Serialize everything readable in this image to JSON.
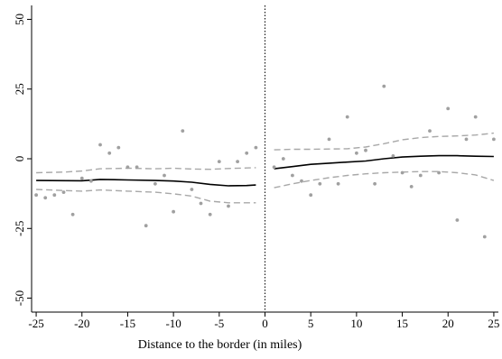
{
  "chart_data": {
    "type": "scatter",
    "title": "",
    "xlabel": "Distance to the border (in miles)",
    "ylabel": "",
    "xlim": [
      -25.5,
      25.5
    ],
    "ylim": [
      -55,
      55
    ],
    "xticks": [
      -25,
      -20,
      -15,
      -10,
      -5,
      0,
      5,
      10,
      15,
      20,
      25
    ],
    "yticks": [
      -50,
      -25,
      0,
      25,
      50
    ],
    "xtick_labels": [
      "-25",
      "-20",
      "-15",
      "-10",
      "-5",
      "0",
      "5",
      "10",
      "15",
      "20",
      "25"
    ],
    "ytick_labels": [
      "-50",
      "-25",
      "0",
      "25",
      "50"
    ],
    "cutoff": 0,
    "grid": false,
    "legend": "none",
    "colors": {
      "points": "#a0a0a0",
      "fit": "#000000",
      "ci": "#a8a8a8"
    },
    "points": {
      "x": [
        -25,
        -24,
        -23,
        -22,
        -21,
        -20,
        -19,
        -18,
        -17,
        -16,
        -15,
        -14,
        -13,
        -12,
        -11,
        -10,
        -9,
        -8,
        -7,
        -6,
        -5,
        -4,
        -3,
        -2,
        -1,
        1,
        2,
        3,
        4,
        5,
        6,
        7,
        8,
        9,
        10,
        11,
        12,
        13,
        14,
        15,
        16,
        17,
        18,
        19,
        20,
        21,
        22,
        23,
        24,
        25
      ],
      "y": [
        -13,
        -14,
        -13,
        -12,
        -20,
        -7,
        -8,
        5,
        2,
        4,
        -3,
        -3,
        -24,
        -9,
        -6,
        -19,
        10,
        -11,
        -16,
        -20,
        -1,
        -17,
        -1,
        2,
        4,
        -3,
        0,
        -6,
        -8,
        -13,
        -9,
        7,
        -9,
        15,
        2,
        3,
        -9,
        26,
        1,
        -5,
        -10,
        -6,
        10,
        -5,
        18,
        -22,
        7,
        15,
        -28,
        7
      ]
    },
    "series": [
      {
        "role": "fit-left",
        "x": [
          -25,
          -20,
          -18,
          -15,
          -12,
          -10,
          -8,
          -6,
          -4,
          -2,
          -1
        ],
        "y": [
          -7.8,
          -7.9,
          -7.4,
          -7.6,
          -7.8,
          -8.0,
          -8.4,
          -9.2,
          -9.7,
          -9.6,
          -9.4
        ]
      },
      {
        "role": "ci-upper-left",
        "x": [
          -25,
          -22,
          -20,
          -18,
          -15,
          -12,
          -10,
          -8,
          -6,
          -4,
          -2,
          -1
        ],
        "y": [
          -5.0,
          -4.8,
          -4.4,
          -3.6,
          -3.4,
          -3.6,
          -3.4,
          -3.7,
          -3.8,
          -3.5,
          -3.3,
          -3.2
        ]
      },
      {
        "role": "ci-lower-left",
        "x": [
          -25,
          -22,
          -20,
          -18,
          -15,
          -12,
          -10,
          -8,
          -6,
          -4,
          -2,
          -1
        ],
        "y": [
          -11.0,
          -11.4,
          -11.6,
          -11.2,
          -11.6,
          -12.0,
          -12.6,
          -13.4,
          -15.2,
          -15.8,
          -15.8,
          -15.8
        ]
      },
      {
        "role": "fit-right",
        "x": [
          1,
          3,
          5,
          7,
          9,
          11,
          13,
          15,
          17,
          19,
          21,
          23,
          25
        ],
        "y": [
          -3.6,
          -2.8,
          -2.0,
          -1.6,
          -1.2,
          -0.8,
          0.0,
          0.6,
          0.9,
          1.1,
          1.1,
          0.9,
          0.8
        ]
      },
      {
        "role": "ci-upper-right",
        "x": [
          1,
          3,
          5,
          7,
          9,
          11,
          13,
          15,
          17,
          19,
          21,
          23,
          25
        ],
        "y": [
          3.2,
          3.4,
          3.4,
          3.5,
          3.6,
          4.2,
          5.4,
          6.8,
          7.6,
          8.0,
          8.2,
          8.5,
          9.2
        ]
      },
      {
        "role": "ci-lower-right",
        "x": [
          1,
          3,
          5,
          7,
          9,
          11,
          13,
          15,
          17,
          19,
          21,
          23,
          25
        ],
        "y": [
          -10.4,
          -9.0,
          -7.8,
          -6.8,
          -6.0,
          -5.4,
          -5.0,
          -4.8,
          -4.6,
          -4.6,
          -5.0,
          -5.8,
          -7.8
        ]
      }
    ]
  }
}
